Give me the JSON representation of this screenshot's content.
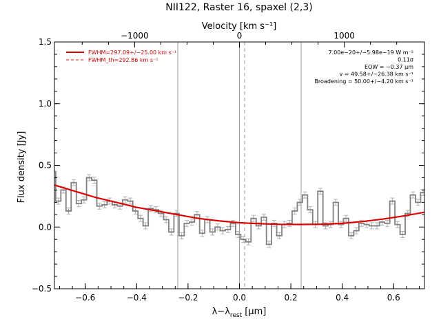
{
  "chart_data": {
    "type": "line",
    "title": "NII122, Raster 16, spaxel (2,3)",
    "xlabel": "λ−λ_rest [μm]",
    "ylabel": "Flux density [Jy]",
    "top_axis_label": "Velocity [km s⁻¹]",
    "xlim": [
      -0.72,
      0.72
    ],
    "ylim": [
      -0.5,
      1.5
    ],
    "top_xlim_velocity": [
      -1765,
      1765
    ],
    "x_ticks": [
      -0.6,
      -0.4,
      -0.2,
      0.0,
      0.2,
      0.4,
      0.6
    ],
    "x_tick_labels": [
      "−0.6",
      "−0.4",
      "−0.2",
      "0.0",
      "0.2",
      "0.4",
      "0.6"
    ],
    "y_ticks": [
      -0.5,
      0.0,
      0.5,
      1.0,
      1.5
    ],
    "y_tick_labels": [
      "−0.5",
      "0.0",
      "0.5",
      "1.0",
      "1.5"
    ],
    "top_ticks": [
      -1000,
      0,
      1000
    ],
    "top_tick_labels": [
      "−1000",
      "0",
      "1000"
    ],
    "grid": false,
    "legend_position": "top-left",
    "legend": [
      {
        "label": "FWHM=297.09+/−25.00 km s⁻¹",
        "style": "solid",
        "color": "#dd0000"
      },
      {
        "label": "FWHM_th=292.86 km s⁻¹",
        "style": "dashed",
        "color": "#dd0000"
      }
    ],
    "annotations": [
      "7.00e−20+/−5.98e−19 W m⁻²",
      "0.11σ",
      "EQW = −0.37 μm",
      "v = 49.58+/−26.38 km s⁻¹",
      "Broadening = 50.00+/−4.20 km s⁻¹"
    ],
    "vertical_lines": [
      {
        "x": -0.24,
        "style": "solid"
      },
      {
        "x": 0.0,
        "style": "solid"
      },
      {
        "x": 0.02,
        "style": "dashed"
      },
      {
        "x": 0.24,
        "style": "solid"
      }
    ],
    "series": [
      {
        "kind": "step",
        "color": "#808080",
        "x": [
          -0.725,
          -0.705,
          -0.685,
          -0.665,
          -0.645,
          -0.625,
          -0.605,
          -0.585,
          -0.565,
          -0.545,
          -0.525,
          -0.505,
          -0.485,
          -0.465,
          -0.445,
          -0.425,
          -0.405,
          -0.385,
          -0.365,
          -0.345,
          -0.325,
          -0.305,
          -0.285,
          -0.265,
          -0.245,
          -0.225,
          -0.205,
          -0.185,
          -0.165,
          -0.145,
          -0.125,
          -0.105,
          -0.085,
          -0.065,
          -0.045,
          -0.025,
          -0.005,
          0.015,
          0.035,
          0.055,
          0.075,
          0.095,
          0.115,
          0.135,
          0.155,
          0.175,
          0.195,
          0.215,
          0.235,
          0.255,
          0.275,
          0.295,
          0.315,
          0.335,
          0.355,
          0.375,
          0.395,
          0.415,
          0.435,
          0.455,
          0.475,
          0.495,
          0.515,
          0.535,
          0.555,
          0.575,
          0.595,
          0.615,
          0.635,
          0.655,
          0.675,
          0.695,
          0.715
        ],
        "y": [
          0.45,
          0.21,
          0.3,
          0.13,
          0.36,
          0.19,
          0.22,
          0.4,
          0.38,
          0.17,
          0.18,
          0.21,
          0.18,
          0.17,
          0.22,
          0.21,
          0.13,
          0.07,
          0.01,
          0.15,
          0.14,
          0.11,
          0.06,
          -0.04,
          0.11,
          -0.07,
          0.03,
          0.04,
          0.1,
          -0.05,
          0.06,
          -0.04,
          0.0,
          -0.03,
          -0.02,
          0.03,
          -0.06,
          -0.1,
          -0.12,
          0.07,
          0.01,
          0.08,
          -0.14,
          0.03,
          -0.07,
          0.02,
          0.03,
          0.13,
          0.2,
          0.26,
          0.14,
          0.02,
          0.29,
          0.01,
          0.02,
          0.2,
          0.02,
          0.07,
          -0.07,
          -0.03,
          0.03,
          0.02,
          0.01,
          0.01,
          0.04,
          0.03,
          0.21,
          0.02,
          -0.06,
          0.11,
          0.26,
          0.2,
          0.28
        ],
        "yerr": 0.025
      },
      {
        "kind": "fit",
        "color": "#dd0000",
        "x": [
          -0.72,
          -0.64,
          -0.56,
          -0.48,
          -0.4,
          -0.32,
          -0.24,
          -0.16,
          -0.08,
          0.0,
          0.08,
          0.16,
          0.24,
          0.32,
          0.4,
          0.48,
          0.56,
          0.64,
          0.72
        ],
        "y": [
          0.34,
          0.29,
          0.24,
          0.2,
          0.16,
          0.13,
          0.1,
          0.07,
          0.05,
          0.035,
          0.027,
          0.022,
          0.021,
          0.023,
          0.03,
          0.045,
          0.065,
          0.09,
          0.12
        ]
      }
    ]
  }
}
